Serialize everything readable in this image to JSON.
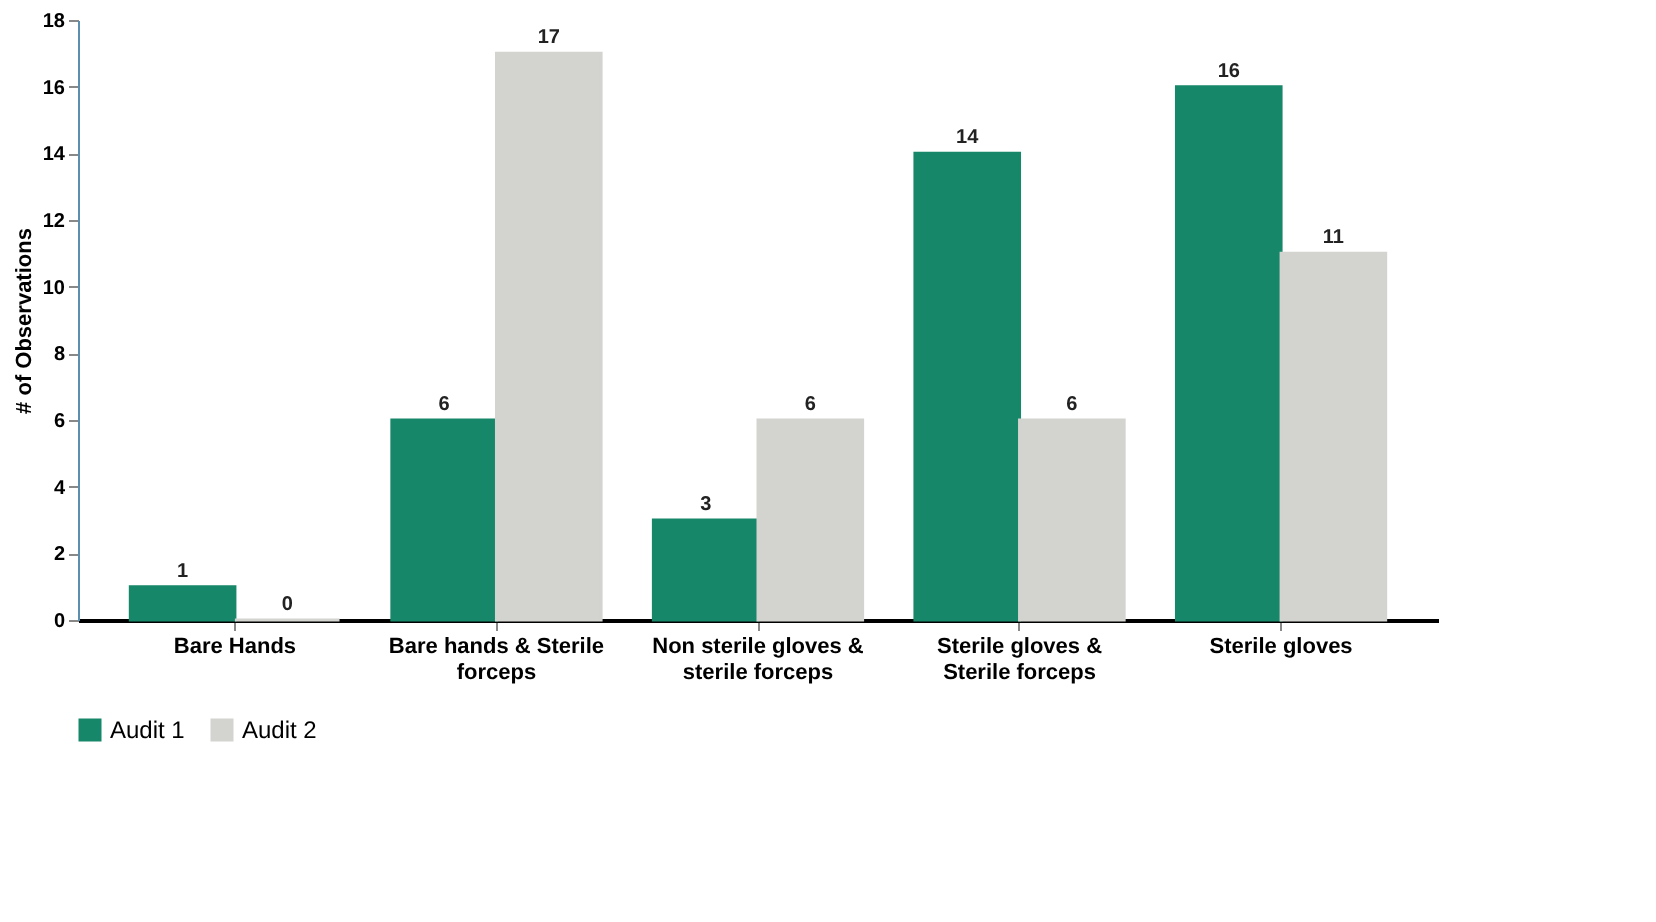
{
  "chart_data": {
    "type": "bar",
    "ylabel": "# of Observations",
    "categories": [
      "Bare Hands",
      "Bare hands & Sterile forceps",
      "Non sterile gloves & sterile forceps",
      "Sterile gloves & Sterile forceps",
      "Sterile gloves"
    ],
    "series": [
      {
        "name": "Audit 1",
        "color": "#17876a",
        "values": [
          1,
          6,
          3,
          14,
          16
        ]
      },
      {
        "name": "Audit 2",
        "color": "#d3d3cf",
        "values": [
          0,
          17,
          6,
          6,
          11
        ]
      }
    ],
    "ylim": [
      0,
      18
    ],
    "yticks": [
      0,
      2,
      4,
      6,
      8,
      10,
      12,
      14,
      16,
      18
    ],
    "grid": false,
    "legend": "bottom",
    "data_labels": true
  }
}
